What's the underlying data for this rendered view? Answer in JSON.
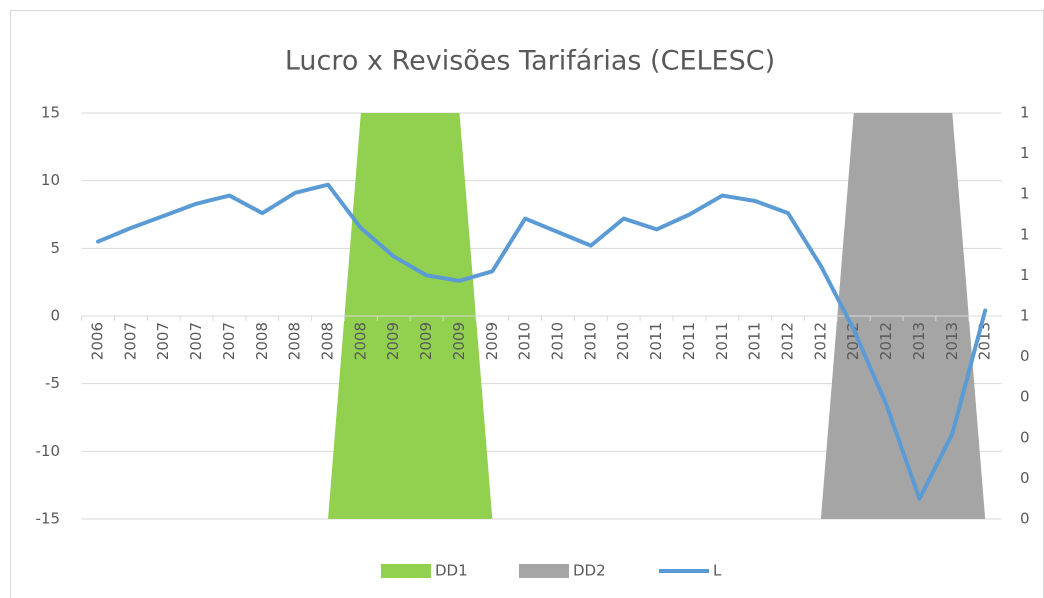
{
  "chart_data": {
    "type": "line",
    "title": "Lucro x Revisões Tarifárias (CELESC)",
    "categories": [
      "2006",
      "2007",
      "2007",
      "2007",
      "2007",
      "2008",
      "2008",
      "2008",
      "2008",
      "2009",
      "2009",
      "2009",
      "2009",
      "2010",
      "2010",
      "2010",
      "2010",
      "2011",
      "2011",
      "2011",
      "2011",
      "2012",
      "2012",
      "2012",
      "2012",
      "2013",
      "2013",
      "2013"
    ],
    "series": [
      {
        "name": "DD1",
        "type": "area",
        "axis": "y2",
        "color": "#92d050",
        "values": [
          0,
          0,
          0,
          0,
          0,
          0,
          0,
          0,
          1,
          1,
          1,
          1,
          0,
          0,
          0,
          0,
          0,
          0,
          0,
          0,
          0,
          0,
          0,
          0,
          0,
          0,
          0,
          0
        ]
      },
      {
        "name": "DD2",
        "type": "area",
        "axis": "y2",
        "color": "#a5a5a5",
        "values": [
          0,
          0,
          0,
          0,
          0,
          0,
          0,
          0,
          0,
          0,
          0,
          0,
          0,
          0,
          0,
          0,
          0,
          0,
          0,
          0,
          0,
          0,
          0,
          1,
          1,
          1,
          1,
          0
        ]
      },
      {
        "name": "L",
        "type": "line",
        "color": "#5b9bd5",
        "values": [
          5.5,
          6.5,
          7.4,
          8.3,
          8.9,
          7.6,
          9.1,
          9.7,
          6.5,
          4.4,
          3.0,
          2.6,
          3.3,
          7.2,
          6.2,
          5.2,
          7.2,
          6.4,
          7.5,
          8.9,
          8.5,
          7.6,
          3.7,
          -1.0,
          -6.6,
          -13.5,
          -8.7,
          0.4
        ]
      }
    ],
    "ylim": [
      -15,
      15
    ],
    "yticks": [
      -15,
      -10,
      -5,
      0,
      5,
      10,
      15
    ],
    "y2lim": [
      0,
      1
    ],
    "y2ticks": [
      0,
      {
        "value": 0.1,
        "label": "0"
      },
      {
        "value": 0.2,
        "label": "0"
      },
      {
        "value": 0.3,
        "label": "0"
      },
      {
        "value": 0.4,
        "label": "0"
      },
      {
        "value": 0.5,
        "label": "1"
      },
      {
        "value": 0.6,
        "label": "1"
      },
      {
        "value": 0.7,
        "label": "1"
      },
      {
        "value": 0.8,
        "label": "1"
      },
      {
        "value": 0.9,
        "label": "1"
      },
      1
    ],
    "grid": true,
    "legend": "bottom"
  }
}
